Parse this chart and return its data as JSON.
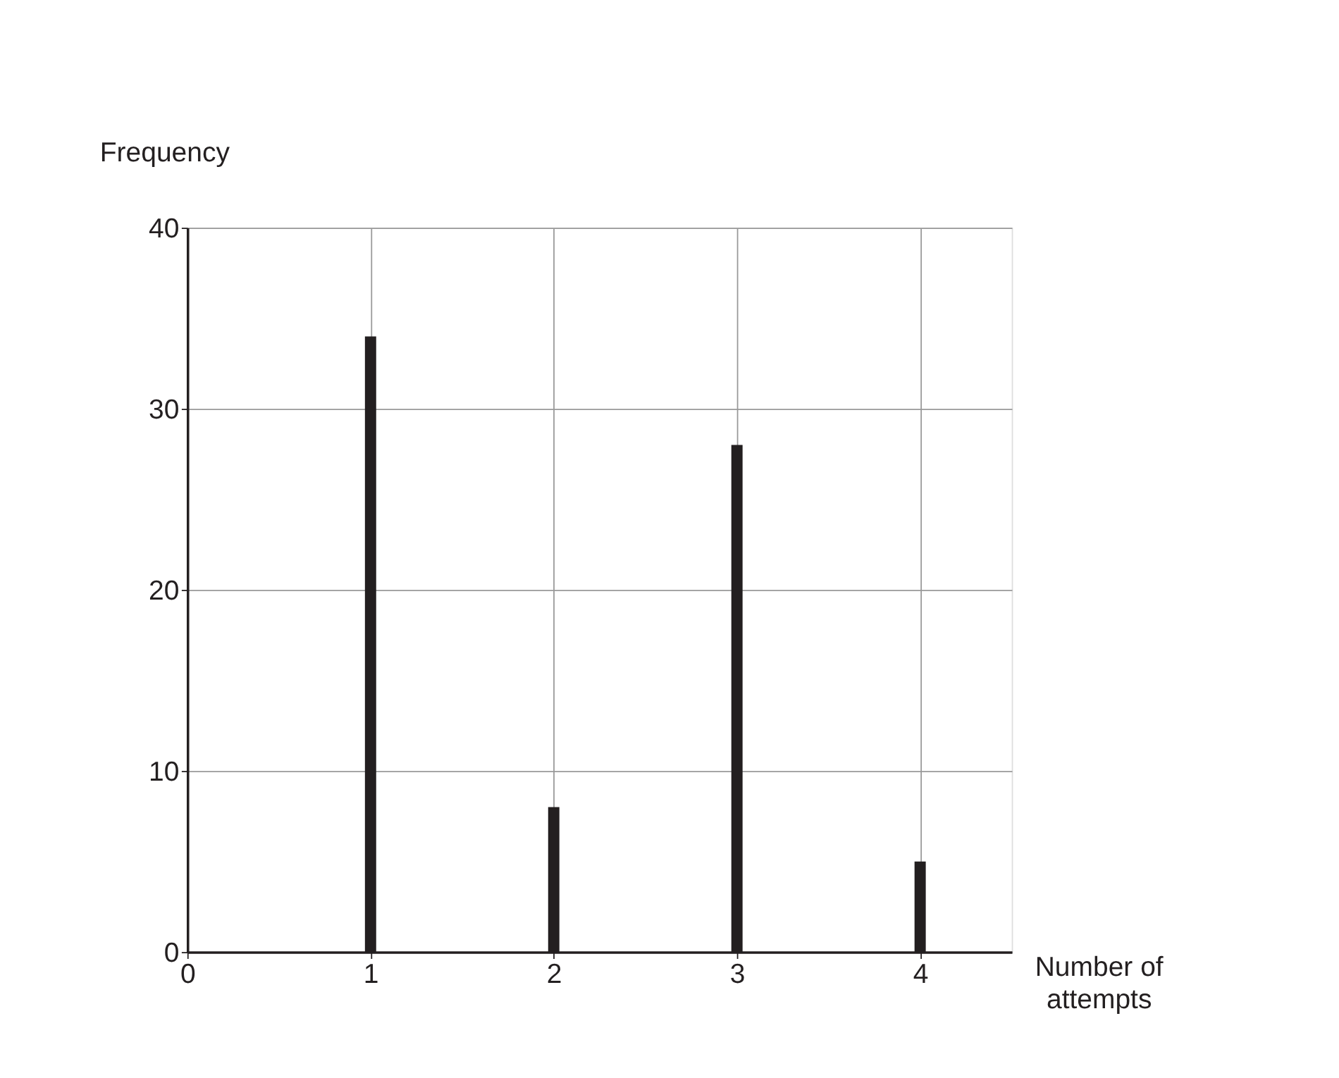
{
  "chart_data": {
    "type": "bar",
    "xlabel": "Number of\nattempts",
    "ylabel": "Frequency",
    "x": [
      1,
      2,
      3,
      4
    ],
    "values": [
      34,
      8,
      28,
      5
    ],
    "color": "#231f20",
    "xlim": [
      0,
      4.5
    ],
    "xticks": [
      0,
      1,
      2,
      3,
      4
    ],
    "ylim": [
      0,
      40
    ],
    "yticks": [
      0,
      10,
      20,
      30,
      40
    ],
    "grid": true
  }
}
